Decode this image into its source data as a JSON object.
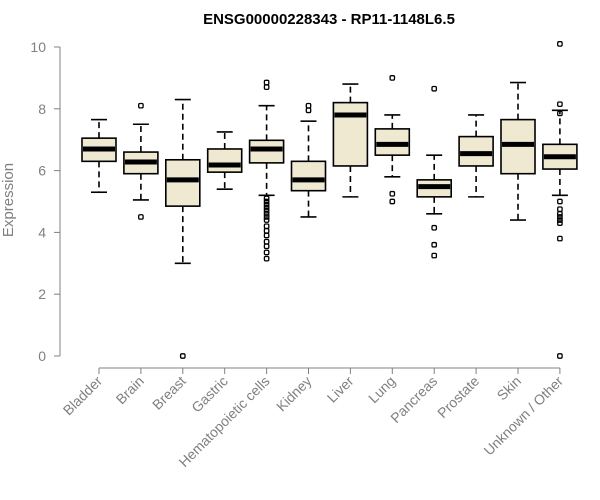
{
  "chart_data": {
    "type": "boxplot",
    "title": "ENSG00000228343 - RP11-1148L6.5",
    "xlabel": "",
    "ylabel": "Expression",
    "ylim": [
      0,
      10
    ],
    "yticks": [
      0,
      2,
      4,
      6,
      8,
      10
    ],
    "box_fill": "#efe9d2",
    "categories": [
      "Bladder",
      "Brain",
      "Breast",
      "Gastric",
      "Hematopoietic cells",
      "Kidney",
      "Liver",
      "Lung",
      "Pancreas",
      "Prostate",
      "Skin",
      "Unknown / Other"
    ],
    "boxes": [
      {
        "name": "Bladder",
        "whislo": 5.3,
        "q1": 6.3,
        "med": 6.7,
        "q3": 7.05,
        "whishi": 7.65,
        "fliers": []
      },
      {
        "name": "Brain",
        "whislo": 5.05,
        "q1": 5.9,
        "med": 6.28,
        "q3": 6.6,
        "whishi": 7.5,
        "fliers": [
          8.1,
          4.5
        ]
      },
      {
        "name": "Breast",
        "whislo": 3.0,
        "q1": 4.85,
        "med": 5.7,
        "q3": 6.35,
        "whishi": 8.3,
        "fliers": [
          0.0
        ]
      },
      {
        "name": "Gastric",
        "whislo": 5.4,
        "q1": 5.95,
        "med": 6.18,
        "q3": 6.7,
        "whishi": 7.25,
        "fliers": []
      },
      {
        "name": "Hematopoietic cells",
        "whislo": 5.2,
        "q1": 6.25,
        "med": 6.7,
        "q3": 6.98,
        "whishi": 8.1,
        "fliers": [
          8.85,
          8.7,
          5.1,
          5.0,
          4.9,
          4.8,
          4.7,
          4.6,
          4.5,
          4.4,
          4.2,
          4.05,
          3.9,
          3.7,
          3.55,
          3.35,
          3.15
        ]
      },
      {
        "name": "Kidney",
        "whislo": 4.5,
        "q1": 5.35,
        "med": 5.7,
        "q3": 6.3,
        "whishi": 7.6,
        "fliers": [
          8.1,
          7.95
        ]
      },
      {
        "name": "Liver",
        "whislo": 5.15,
        "q1": 6.15,
        "med": 7.8,
        "q3": 8.2,
        "whishi": 8.8,
        "fliers": []
      },
      {
        "name": "Lung",
        "whislo": 5.8,
        "q1": 6.5,
        "med": 6.85,
        "q3": 7.35,
        "whishi": 7.8,
        "fliers": [
          9.0,
          5.25,
          5.0
        ]
      },
      {
        "name": "Pancreas",
        "whislo": 4.6,
        "q1": 5.15,
        "med": 5.48,
        "q3": 5.7,
        "whishi": 6.5,
        "fliers": [
          8.65,
          4.15,
          3.6,
          3.25
        ]
      },
      {
        "name": "Prostate",
        "whislo": 5.15,
        "q1": 6.15,
        "med": 6.55,
        "q3": 7.1,
        "whishi": 7.8,
        "fliers": []
      },
      {
        "name": "Skin",
        "whislo": 4.4,
        "q1": 5.9,
        "med": 6.85,
        "q3": 7.65,
        "whishi": 8.85,
        "fliers": []
      },
      {
        "name": "Unknown / Other",
        "whislo": 5.2,
        "q1": 6.05,
        "med": 6.45,
        "q3": 6.85,
        "whishi": 7.95,
        "fliers": [
          10.1,
          8.15,
          7.85,
          5.0,
          4.75,
          4.6,
          4.5,
          4.4,
          4.3,
          3.8,
          0.0
        ]
      }
    ]
  }
}
